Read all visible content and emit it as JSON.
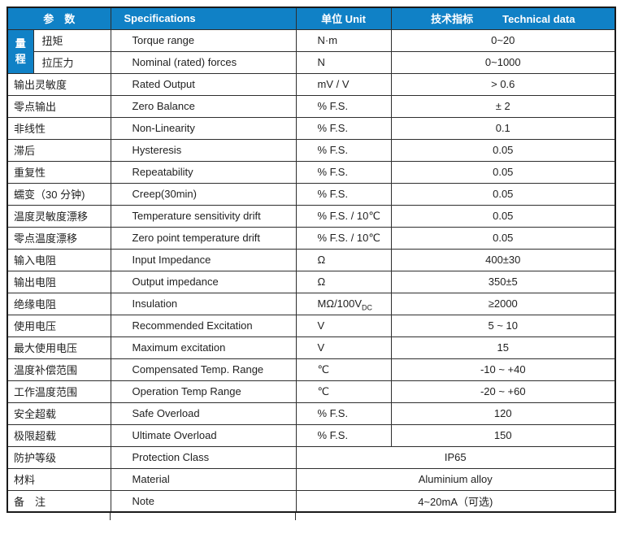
{
  "colors": {
    "header_bg": "#1081c6",
    "border": "#2e2e2e",
    "outer_border": "#1a1a1a",
    "text": "#1f1f1f",
    "header_text": "#ffffff"
  },
  "header": {
    "param_label": "参　数",
    "spec_label": "Specifications",
    "unit_label": "单位 Unit",
    "tech_label_cn": "技术指标",
    "tech_label_en": "Technical data"
  },
  "range_group": {
    "label": "量程",
    "chars": [
      "量",
      "程"
    ],
    "rowspan": 2
  },
  "rows": [
    {
      "param": "扭矩",
      "spec": "Torque range",
      "unit": "N·m",
      "value": "0~20",
      "group": true
    },
    {
      "param": "拉压力",
      "spec": "Nominal (rated) forces",
      "unit": "N",
      "value": "0~1000",
      "group": true
    },
    {
      "param": "输出灵敏度",
      "spec": "Rated Output",
      "unit": "mV / V",
      "value": "> 0.6"
    },
    {
      "param": "零点输出",
      "spec": "Zero Balance",
      "unit": "% F.S.",
      "value": "± 2"
    },
    {
      "param": "非线性",
      "spec": "Non-Linearity",
      "unit": "% F.S.",
      "value": "0.1"
    },
    {
      "param": "滞后",
      "spec": "Hysteresis",
      "unit": "% F.S.",
      "value": "0.05"
    },
    {
      "param": "重复性",
      "spec": "Repeatability",
      "unit": "% F.S.",
      "value": "0.05"
    },
    {
      "param": "蠕变（30 分钟)",
      "spec": "Creep(30min)",
      "unit": "% F.S.",
      "value": "0.05"
    },
    {
      "param": "温度灵敏度漂移",
      "spec": "Temperature sensitivity drift",
      "unit": "% F.S. / 10℃",
      "value": "0.05"
    },
    {
      "param": "零点温度漂移",
      "spec": "Zero point temperature drift",
      "unit": "% F.S. / 10℃",
      "value": "0.05"
    },
    {
      "param": "输入电阻",
      "spec": "Input Impedance",
      "unit": "Ω",
      "value": "400±30"
    },
    {
      "param": "输出电阻",
      "spec": "Output impedance",
      "unit": "Ω",
      "value": "350±5"
    },
    {
      "param": "绝缘电阻",
      "spec": "Insulation",
      "unit": "MΩ/100V",
      "unit_sub": "DC",
      "value": "≥2000"
    },
    {
      "param": "使用电压",
      "spec": "Recommended Excitation",
      "unit": "V",
      "value": "5 ~ 10"
    },
    {
      "param": "最大使用电压",
      "spec": "Maximum excitation",
      "unit": "V",
      "value": "15"
    },
    {
      "param": "温度补偿范围",
      "spec": "Compensated Temp. Range",
      "unit": "℃",
      "value": "-10 ~  +40"
    },
    {
      "param": "工作温度范围",
      "spec": "Operation Temp Range",
      "unit": "℃",
      "value": "-20 ~  +60"
    },
    {
      "param": "安全超载",
      "spec": "Safe Overload",
      "unit": "% F.S.",
      "value": "120"
    },
    {
      "param": "极限超载",
      "spec": "Ultimate Overload",
      "unit": "% F.S.",
      "value": "150"
    },
    {
      "param": "防护等级",
      "spec": "Protection Class",
      "value": "IP65",
      "merged": true
    },
    {
      "param": "材料",
      "spec": "Material",
      "value": "Aluminium alloy",
      "merged": true
    },
    {
      "param": "备　注",
      "spec": "Note",
      "value": "4~20mA（可选)",
      "merged": true
    }
  ]
}
